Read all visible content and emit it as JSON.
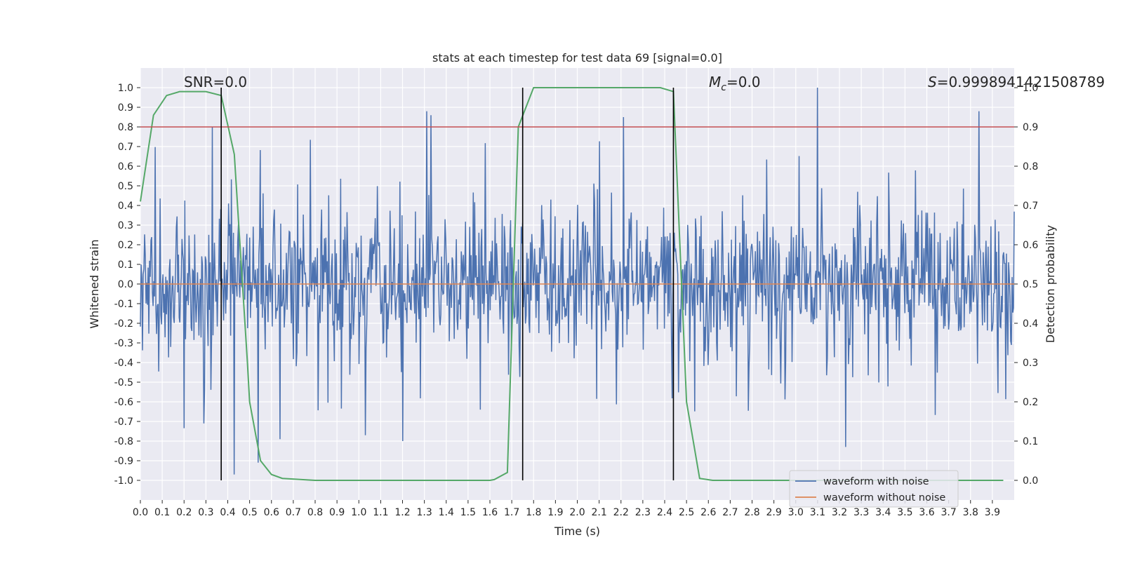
{
  "chart_data": {
    "type": "line",
    "title": "stats at each timestep for test data 69 [signal=0.0]",
    "xlabel": "Time (s)",
    "ylabel": "Whitened strain",
    "y2label": "Detection probability",
    "xlim": [
      0.0,
      4.0
    ],
    "ylim": [
      -1.1,
      1.1
    ],
    "y2lim": [
      -0.05,
      1.05
    ],
    "x_ticks": [
      0.0,
      0.1,
      0.2,
      0.3,
      0.4,
      0.5,
      0.6,
      0.7,
      0.8,
      0.9,
      1.0,
      1.1,
      1.2,
      1.3,
      1.4,
      1.5,
      1.6,
      1.7,
      1.8,
      1.9,
      2.0,
      2.1,
      2.2,
      2.3,
      2.4,
      2.5,
      2.6,
      2.7,
      2.8,
      2.9,
      3.0,
      3.1,
      3.2,
      3.3,
      3.4,
      3.5,
      3.6,
      3.7,
      3.8,
      3.9
    ],
    "x_tick_labels": [
      "0.0",
      "0.1",
      "0.2",
      "0.3",
      "0.4",
      "0.5",
      "0.6",
      "0.7",
      "0.8",
      "0.9",
      "1.0",
      "1.1",
      "1.2",
      "1.3",
      "1.4",
      "1.5",
      "1.6",
      "1.7",
      "1.8",
      "1.9",
      "2.0",
      "2.1",
      "2.2",
      "2.3",
      "2.4",
      "2.5",
      "2.6",
      "2.7",
      "2.8",
      "2.9",
      "3.0",
      "3.1",
      "3.2",
      "3.3",
      "3.4",
      "3.5",
      "3.6",
      "3.7",
      "3.8",
      "3.9"
    ],
    "y_ticks": [
      -1.0,
      -0.9,
      -0.8,
      -0.7,
      -0.6,
      -0.5,
      -0.4,
      -0.3,
      -0.2,
      -0.1,
      0.0,
      0.1,
      0.2,
      0.3,
      0.4,
      0.5,
      0.6,
      0.7,
      0.8,
      0.9,
      1.0
    ],
    "y_tick_labels": [
      "-1.0",
      "-0.9",
      "-0.8",
      "-0.7",
      "-0.6",
      "-0.5",
      "-0.4",
      "-0.3",
      "-0.2",
      "-0.1",
      "0.0",
      "0.1",
      "0.2",
      "0.3",
      "0.4",
      "0.5",
      "0.6",
      "0.7",
      "0.8",
      "0.9",
      "1.0"
    ],
    "y2_ticks": [
      0.0,
      0.1,
      0.2,
      0.3,
      0.4,
      0.5,
      0.6,
      0.7,
      0.8,
      0.9,
      1.0
    ],
    "y2_tick_labels": [
      "0.0",
      "0.1",
      "0.2",
      "0.3",
      "0.4",
      "0.5",
      "0.6",
      "0.7",
      "0.8",
      "0.9",
      "1.0"
    ],
    "grid": true,
    "legend_position": "bottom-right",
    "series": [
      {
        "name": "waveform with noise",
        "color": "#4c72b0",
        "axis": "left",
        "noise_amplitude": 0.3,
        "peaks": [
          {
            "x": 0.33,
            "y": 0.8
          },
          {
            "x": 0.43,
            "y": -0.97
          },
          {
            "x": 0.54,
            "y": -0.91
          },
          {
            "x": 1.31,
            "y": 0.88
          },
          {
            "x": 1.33,
            "y": 0.86
          },
          {
            "x": 2.21,
            "y": 0.85
          },
          {
            "x": 3.1,
            "y": 1.0
          },
          {
            "x": 3.23,
            "y": -0.83
          },
          {
            "x": 3.84,
            "y": 0.88
          },
          {
            "x": 1.2,
            "y": -0.8
          },
          {
            "x": 1.03,
            "y": -0.77
          },
          {
            "x": 0.64,
            "y": -0.79
          },
          {
            "x": 0.29,
            "y": -0.71
          }
        ]
      },
      {
        "name": "waveform without noise",
        "color": "#dd8452",
        "axis": "left",
        "y": 0.0
      },
      {
        "name": "",
        "color": "#55a868",
        "axis": "right",
        "x": [
          0.0,
          0.06,
          0.12,
          0.18,
          0.24,
          0.3,
          0.37,
          0.43,
          0.49,
          0.5,
          0.55,
          0.6,
          0.65,
          0.8,
          1.0,
          1.3,
          1.6,
          1.62,
          1.68,
          1.73,
          1.8,
          1.9,
          2.0,
          2.3,
          2.38,
          2.44,
          2.5,
          2.56,
          2.62,
          2.8,
          3.2,
          3.6,
          3.95
        ],
        "y": [
          0.71,
          0.93,
          0.98,
          0.99,
          0.99,
          0.99,
          0.98,
          0.83,
          0.3,
          0.2,
          0.05,
          0.015,
          0.005,
          0.0,
          0.0,
          0.0,
          0.0,
          0.002,
          0.02,
          0.9,
          1.0,
          1.0,
          1.0,
          1.0,
          1.0,
          0.99,
          0.2,
          0.005,
          0.0,
          0.0,
          0.0,
          0.0,
          0.0
        ]
      }
    ],
    "threshold": {
      "y2": 0.9,
      "color": "#c44e52"
    },
    "vlines": [
      0.37,
      1.75,
      2.44
    ],
    "vline_color": "#000000",
    "annotations": [
      {
        "text": "SNR=0.0",
        "x": 0.2
      },
      {
        "text": "=0.0",
        "symbol": "M",
        "subscript": "c",
        "x": 2.6
      },
      {
        "text": "=0.9998941421508789",
        "symbol": "S",
        "x": 3.6
      }
    ]
  }
}
